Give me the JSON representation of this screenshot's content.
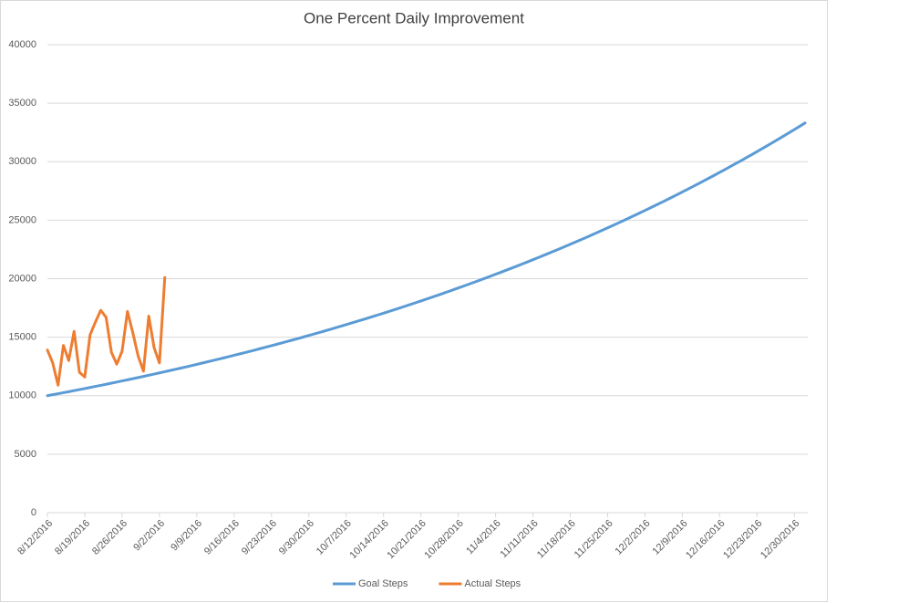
{
  "chart_data": {
    "type": "line",
    "title": "One Percent Daily Improvement",
    "categories": [
      "8/12/2016",
      null,
      null,
      null,
      null,
      null,
      null,
      "8/19/2016",
      null,
      null,
      null,
      null,
      null,
      null,
      "8/26/2016",
      null,
      null,
      null,
      null,
      null,
      null,
      "9/2/2016",
      null,
      null,
      null,
      null,
      null,
      null,
      "9/9/2016",
      null,
      null,
      null,
      null,
      null,
      null,
      "9/16/2016",
      null,
      null,
      null,
      null,
      null,
      null,
      "9/23/2016",
      null,
      null,
      null,
      null,
      null,
      null,
      "9/30/2016",
      null,
      null,
      null,
      null,
      null,
      null,
      "10/7/2016",
      null,
      null,
      null,
      null,
      null,
      null,
      "10/14/2016",
      null,
      null,
      null,
      null,
      null,
      null,
      "10/21/2016",
      null,
      null,
      null,
      null,
      null,
      null,
      "10/28/2016",
      null,
      null,
      null,
      null,
      null,
      null,
      "11/4/2016",
      null,
      null,
      null,
      null,
      null,
      null,
      "11/11/2016",
      null,
      null,
      null,
      null,
      null,
      null,
      "11/18/2016",
      null,
      null,
      null,
      null,
      null,
      null,
      "11/25/2016",
      null,
      null,
      null,
      null,
      null,
      null,
      "12/2/2016",
      null,
      null,
      null,
      null,
      null,
      null,
      "12/9/2016",
      null,
      null,
      null,
      null,
      null,
      null,
      "12/16/2016",
      null,
      null,
      null,
      null,
      null,
      null,
      "12/23/2016",
      null,
      null,
      null,
      null,
      null,
      null,
      "12/30/2016",
      null,
      null
    ],
    "series": [
      {
        "name": "Goal Steps",
        "color": "#5b9bd5",
        "values": [
          10000,
          10085,
          10171,
          10257,
          10344,
          10432,
          10521,
          10611,
          10701,
          10792,
          10884,
          10976,
          11070,
          11164,
          11260,
          11356,
          11453,
          11550,
          11647,
          11747,
          11847,
          11948,
          12050,
          12152,
          12255,
          12359,
          12464,
          12570,
          12678,
          12786,
          12895,
          13004,
          13114,
          13226,
          13338,
          13453,
          13567,
          13683,
          13799,
          13916,
          14034,
          14154,
          14275,
          14396,
          14519,
          14642,
          14766,
          14892,
          15019,
          15147,
          15276,
          15406,
          15536,
          15668,
          15801,
          15936,
          16073,
          16210,
          16348,
          16486,
          16626,
          16767,
          16910,
          17055,
          17200,
          17347,
          17493,
          17642,
          17792,
          17944,
          18097,
          18251,
          18407,
          18562,
          18720,
          18879,
          19040,
          19203,
          19366,
          19531,
          19697,
          19864,
          20033,
          20203,
          20377,
          20550,
          20725,
          20901,
          21078,
          21257,
          21438,
          21622,
          21806,
          21992,
          22178,
          22366,
          22556,
          22748,
          22943,
          23138,
          23335,
          23533,
          23733,
          23934,
          24138,
          24345,
          24552,
          24761,
          24971,
          25182,
          25397,
          25613,
          25833,
          26053,
          26275,
          26497,
          26722,
          26949,
          27179,
          27412,
          27645,
          27881,
          28117,
          28355,
          28596,
          28840,
          29087,
          29334,
          29585,
          29835,
          30087,
          30344,
          30602,
          30864,
          31126,
          31392,
          31657,
          31926,
          32197,
          32472,
          32750,
          33028,
          33309
        ]
      },
      {
        "name": "Actual Steps",
        "color": "#ed7d31",
        "values": [
          13900,
          12800,
          10900,
          14300,
          13000,
          15500,
          12000,
          11600,
          15200,
          16300,
          17300,
          16700,
          13700,
          12700,
          13800,
          17200,
          15400,
          13400,
          12100,
          16800,
          14100,
          12800,
          20100,
          null,
          null,
          null,
          null,
          null,
          null,
          null,
          null,
          null,
          null,
          null,
          null,
          null,
          null,
          null,
          null,
          null,
          null,
          null,
          null,
          null,
          null,
          null,
          null,
          null,
          null,
          null,
          null,
          null,
          null,
          null,
          null,
          null,
          null,
          null,
          null,
          null,
          null,
          null,
          null,
          null,
          null,
          null,
          null,
          null,
          null,
          null,
          null,
          null,
          null,
          null,
          null,
          null,
          null,
          null,
          null,
          null,
          null,
          null,
          null,
          null,
          null,
          null,
          null,
          null,
          null,
          null,
          null,
          null,
          null,
          null,
          null,
          null,
          null,
          null,
          null,
          null,
          null,
          null,
          null,
          null,
          null,
          null,
          null,
          null,
          null,
          null,
          null,
          null,
          null,
          null,
          null,
          null,
          null,
          null,
          null,
          null,
          null,
          null,
          null,
          null,
          null,
          null,
          null,
          null,
          null,
          null,
          null,
          null,
          null,
          null,
          null,
          null,
          null,
          null,
          null,
          null,
          null,
          null,
          null
        ]
      }
    ],
    "ylim": [
      0,
      40000
    ],
    "yticks": [
      0,
      5000,
      10000,
      15000,
      20000,
      25000,
      30000,
      35000,
      40000
    ],
    "grid": true,
    "legend": "bottom"
  }
}
